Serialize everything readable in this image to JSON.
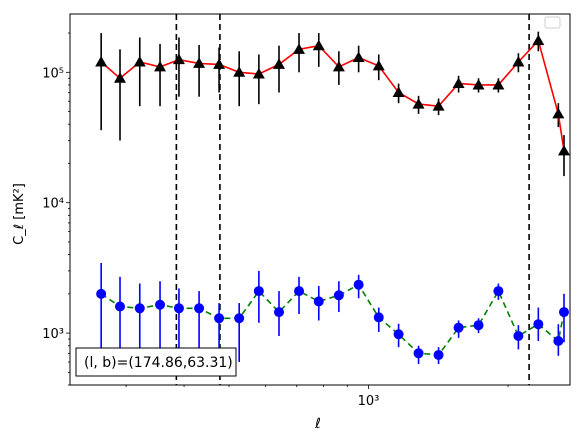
{
  "chart_data": {
    "type": "scatter",
    "title": "",
    "xlabel": "ℓ",
    "ylabel": "C_ℓ  [mK²]",
    "xscale": "log",
    "yscale": "log",
    "xlim": [
      227,
      2720
    ],
    "ylim": [
      400,
      280000
    ],
    "xticks": [
      {
        "value": 1000,
        "label": "10³"
      }
    ],
    "yticks": [
      {
        "value": 1000,
        "label": "10³"
      },
      {
        "value": 10000,
        "label": "10⁴"
      },
      {
        "value": 100000,
        "label": "10⁵"
      }
    ],
    "grid": false,
    "legend": {
      "placement": "top-right",
      "entries": []
    },
    "annotation": "(l, b)=(174.86,63.31)",
    "vlines": [
      385,
      478,
      2220
    ],
    "series": [
      {
        "line_color": "#ff0000",
        "line_style": "solid",
        "marker": "triangle",
        "marker_color": "#000000",
        "x": [
          265,
          291,
          321,
          355,
          390,
          431,
          476,
          526,
          580,
          641,
          708,
          781,
          863,
          952,
          1052,
          1161,
          1282,
          1416,
          1564,
          1727,
          1906,
          2105,
          2324,
          2567
        ],
        "y": [
          120000,
          90000,
          120000,
          110000,
          125000,
          117000,
          115000,
          100000,
          97000,
          115000,
          150000,
          160000,
          110000,
          130000,
          112000,
          70000,
          57000,
          55000,
          82000,
          80000,
          80000,
          120000,
          175000,
          48000
        ],
        "err_low": [
          84000,
          60000,
          65000,
          55000,
          60000,
          52000,
          45000,
          45000,
          40000,
          45000,
          50000,
          50000,
          30000,
          30000,
          25000,
          12000,
          9000,
          8000,
          12000,
          10000,
          10000,
          20000,
          30000,
          10000
        ],
        "err_high": [
          80000,
          60000,
          65000,
          55000,
          60000,
          45000,
          40000,
          45000,
          40000,
          45000,
          50000,
          40000,
          35000,
          30000,
          25000,
          12000,
          9000,
          8000,
          12000,
          10000,
          10000,
          20000,
          30000,
          10000
        ]
      },
      {
        "line_color": "#008000",
        "line_style": "dashed",
        "marker": "circle",
        "marker_color": "#0000ff",
        "x": [
          265,
          291,
          321,
          355,
          390,
          431,
          476,
          526,
          580,
          641,
          708,
          781,
          863,
          952,
          1052,
          1161,
          1282,
          1416,
          1564,
          1727,
          1906,
          2105,
          2324,
          2567
        ],
        "y": [
          2000,
          1600,
          1550,
          1650,
          1550,
          1550,
          1300,
          1300,
          2100,
          1450,
          2100,
          1750,
          1950,
          2350,
          1320,
          980,
          700,
          680,
          1100,
          1150,
          2100,
          950,
          1170,
          870
        ],
        "err_low": [
          1500,
          1100,
          1050,
          1100,
          1050,
          1000,
          700,
          700,
          900,
          500,
          700,
          500,
          500,
          500,
          300,
          200,
          120,
          100,
          180,
          150,
          300,
          200,
          300,
          200
        ],
        "err_high": [
          1450,
          1100,
          850,
          850,
          650,
          550,
          400,
          400,
          900,
          650,
          600,
          550,
          550,
          450,
          250,
          200,
          100,
          100,
          150,
          150,
          300,
          200,
          400,
          300
        ]
      }
    ],
    "extra_point": {
      "x": 2640,
      "y_red": 25000,
      "y_blue": 1450,
      "err_red": [
        9000,
        8000
      ],
      "err_blue": [
        600,
        550
      ]
    }
  }
}
